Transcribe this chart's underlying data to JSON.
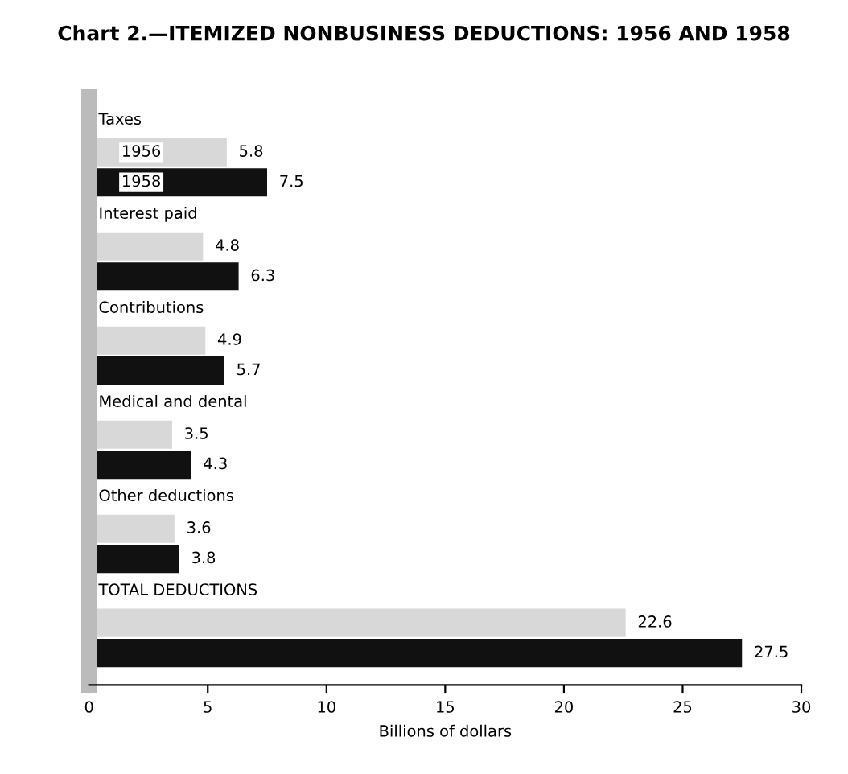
{
  "chart_data": {
    "type": "bar",
    "orientation": "horizontal",
    "title": "Chart 2.—ITEMIZED NONBUSINESS DEDUCTIONS: 1956 AND 1958",
    "xlabel": "Billions of dollars",
    "categories": [
      "Taxes",
      "Interest paid",
      "Contributions",
      "Medical and dental",
      "Other deductions",
      "TOTAL DEDUCTIONS"
    ],
    "series": [
      {
        "name": "1956",
        "color": "#d8d8d8",
        "values": [
          5.8,
          4.8,
          4.9,
          3.5,
          3.6,
          22.6
        ]
      },
      {
        "name": "1958",
        "color": "#111111",
        "values": [
          7.5,
          6.3,
          5.7,
          4.3,
          3.8,
          27.5
        ]
      }
    ],
    "xlim": [
      0,
      30
    ],
    "xticks": [
      0,
      5,
      10,
      15,
      20,
      25,
      30
    ],
    "data_labels": true,
    "grid": false
  }
}
